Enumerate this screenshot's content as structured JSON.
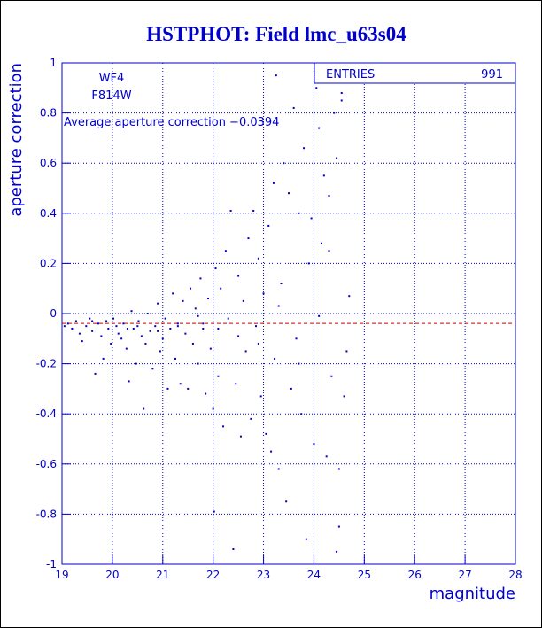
{
  "chart_data": {
    "type": "scatter",
    "title": "HSTPHOT: Field lmc_u63s04",
    "xlabel": "magnitude",
    "ylabel": "aperture correction",
    "annotations": [
      "WF4",
      "F814W",
      "Average aperture correction −0.0394"
    ],
    "mean_value": -0.0394,
    "mean_color": "#cc0000",
    "stats": {
      "label": "ENTRIES",
      "value": 991
    },
    "color": "#0000cc",
    "grid": true,
    "xlim": [
      19,
      28
    ],
    "xticks": [
      19,
      20,
      21,
      22,
      23,
      24,
      25,
      26,
      27,
      28
    ],
    "ylim": [
      -1,
      1
    ],
    "yticks": [
      -1,
      -0.8,
      -0.6,
      -0.4,
      -0.2,
      0,
      0.2,
      0.4,
      0.6,
      0.8,
      1
    ],
    "x": [
      19.05,
      19.12,
      19.2,
      19.28,
      19.35,
      19.4,
      19.48,
      19.55,
      19.6,
      19.66,
      19.72,
      19.78,
      19.82,
      19.88,
      19.92,
      19.97,
      20.02,
      20.08,
      20.12,
      20.18,
      20.22,
      20.28,
      20.33,
      20.38,
      20.42,
      20.47,
      20.52,
      20.58,
      20.62,
      20.66,
      20.7,
      20.75,
      20.8,
      20.85,
      20.9,
      20.95,
      21.0,
      21.05,
      21.1,
      21.15,
      21.2,
      21.25,
      21.3,
      21.35,
      21.4,
      21.45,
      21.5,
      21.55,
      21.6,
      21.65,
      21.7,
      21.75,
      21.8,
      21.85,
      21.9,
      21.95,
      22.0,
      22.02,
      22.05,
      22.1,
      22.15,
      22.2,
      22.25,
      22.3,
      22.35,
      22.4,
      22.45,
      22.5,
      22.55,
      22.6,
      22.65,
      22.7,
      22.75,
      22.8,
      22.85,
      22.9,
      22.95,
      23.0,
      23.05,
      23.1,
      23.15,
      23.2,
      23.22,
      23.25,
      23.3,
      23.35,
      23.4,
      23.45,
      23.5,
      23.55,
      23.6,
      23.65,
      23.7,
      23.75,
      23.8,
      23.85,
      23.9,
      23.95,
      24.0,
      24.05,
      24.1,
      24.15,
      24.2,
      24.25,
      24.3,
      24.35,
      24.4,
      24.45,
      24.5,
      24.55,
      24.6,
      24.65,
      24.7,
      24.1,
      24.3,
      24.45,
      24.5,
      24.55,
      19.6,
      20.5,
      20.9,
      21.3,
      21.7,
      22.1,
      22.5,
      22.9,
      23.3,
      23.7,
      20.3,
      21.8
    ],
    "values": [
      -0.05,
      -0.04,
      -0.06,
      -0.03,
      -0.08,
      -0.11,
      -0.05,
      -0.02,
      -0.07,
      -0.24,
      -0.04,
      -0.09,
      -0.18,
      -0.03,
      -0.06,
      -0.12,
      -0.02,
      -0.05,
      -0.08,
      -0.1,
      -0.04,
      -0.14,
      -0.27,
      0.01,
      -0.06,
      -0.2,
      -0.03,
      -0.09,
      -0.38,
      -0.12,
      0.0,
      -0.07,
      -0.22,
      -0.05,
      0.04,
      -0.15,
      -0.1,
      -0.02,
      -0.3,
      -0.06,
      0.08,
      -0.18,
      -0.04,
      -0.28,
      0.05,
      -0.08,
      -0.3,
      0.1,
      -0.12,
      0.02,
      -0.2,
      0.14,
      -0.06,
      -0.32,
      0.06,
      -0.14,
      -0.38,
      -0.79,
      0.18,
      -0.25,
      0.1,
      -0.45,
      0.25,
      -0.02,
      0.41,
      -0.94,
      -0.28,
      0.15,
      -0.49,
      0.05,
      -0.15,
      0.3,
      -0.42,
      0.41,
      -0.05,
      0.22,
      -0.33,
      0.08,
      -0.48,
      0.35,
      -0.55,
      0.52,
      -0.18,
      0.95,
      -0.62,
      0.12,
      0.6,
      -0.75,
      0.48,
      -0.3,
      0.82,
      -0.1,
      0.4,
      -0.4,
      0.66,
      -0.9,
      0.2,
      0.38,
      -0.52,
      0.9,
      -0.01,
      0.28,
      0.55,
      -0.57,
      0.25,
      -0.25,
      0.8,
      0.62,
      -0.85,
      0.85,
      -0.33,
      -0.15,
      0.07,
      0.74,
      0.47,
      -0.95,
      -0.62,
      0.88,
      -0.03,
      -0.05,
      -0.07,
      -0.05,
      -0.01,
      -0.06,
      -0.09,
      -0.12,
      0.03,
      -0.2,
      -0.06,
      -0.04
    ]
  }
}
